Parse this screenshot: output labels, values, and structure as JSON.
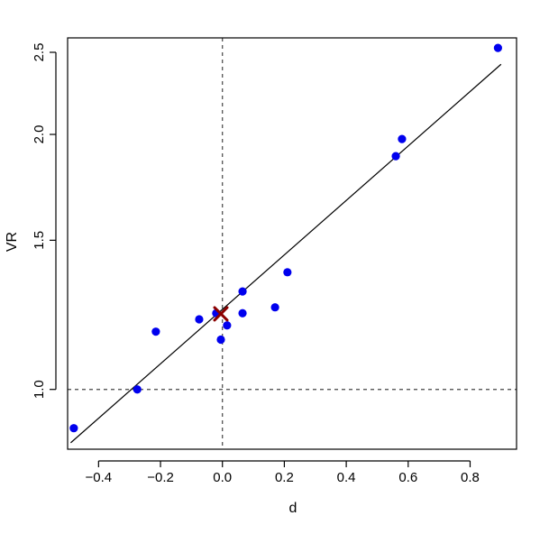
{
  "chart_data": {
    "type": "scatter",
    "title": "",
    "xlabel": "d",
    "ylabel": "VR",
    "y_scale": "log",
    "xlim": [
      -0.5,
      0.95
    ],
    "ylim": [
      0.85,
      2.6
    ],
    "x_ticks": [
      -0.4,
      -0.2,
      0.0,
      0.2,
      0.4,
      0.6,
      0.8
    ],
    "x_tick_labels": [
      "−0.4",
      "−0.2",
      "0.0",
      "0.2",
      "0.4",
      "0.6",
      "0.8"
    ],
    "y_ticks": [
      1.0,
      1.5,
      2.0,
      2.5
    ],
    "y_tick_labels": [
      "1.0",
      "1.5",
      "2.0",
      "2.5"
    ],
    "grid": false,
    "points": [
      {
        "x": -0.48,
        "y": 0.9
      },
      {
        "x": -0.275,
        "y": 1.0
      },
      {
        "x": -0.215,
        "y": 1.17
      },
      {
        "x": -0.075,
        "y": 1.21
      },
      {
        "x": -0.02,
        "y": 1.23
      },
      {
        "x": -0.005,
        "y": 1.145
      },
      {
        "x": 0.015,
        "y": 1.19
      },
      {
        "x": 0.065,
        "y": 1.23
      },
      {
        "x": 0.065,
        "y": 1.305
      },
      {
        "x": 0.17,
        "y": 1.25
      },
      {
        "x": 0.21,
        "y": 1.375
      },
      {
        "x": 0.56,
        "y": 1.885
      },
      {
        "x": 0.58,
        "y": 1.975
      },
      {
        "x": 0.89,
        "y": 2.53
      }
    ],
    "fit_line": [
      {
        "x": -0.49,
        "y": 0.865
      },
      {
        "x": 0.9,
        "y": 2.42
      }
    ],
    "center_marker": {
      "x": -0.005,
      "y": 1.228
    },
    "reference_lines": {
      "vertical_x": 0.0,
      "horizontal_y": 1.0
    },
    "colors": {
      "points": "#0000ee",
      "marker": "#8b0000",
      "line": "#000000",
      "reference": "#444444"
    }
  }
}
